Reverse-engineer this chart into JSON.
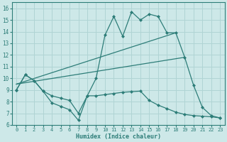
{
  "xlabel": "Humidex (Indice chaleur)",
  "xlim": [
    -0.5,
    23.5
  ],
  "ylim": [
    6,
    16.5
  ],
  "xticks": [
    0,
    1,
    2,
    3,
    4,
    5,
    6,
    7,
    8,
    9,
    10,
    11,
    12,
    13,
    14,
    15,
    16,
    17,
    18,
    19,
    20,
    21,
    22,
    23
  ],
  "yticks": [
    6,
    7,
    8,
    9,
    10,
    11,
    12,
    13,
    14,
    15,
    16
  ],
  "bg_color": "#cde8e8",
  "line_color": "#2d7d78",
  "grid_color": "#b0d4d4",
  "line1_x": [
    0,
    1,
    2,
    3,
    4,
    5,
    6,
    7,
    8,
    9,
    10,
    11,
    12,
    13,
    14,
    15,
    16,
    17,
    18,
    19,
    20,
    21,
    22,
    23
  ],
  "line1_y": [
    9.0,
    10.3,
    9.8,
    8.9,
    7.9,
    7.6,
    7.3,
    6.4,
    8.5,
    10.0,
    13.7,
    15.3,
    13.6,
    15.7,
    15.0,
    15.5,
    15.3,
    13.9,
    13.9,
    11.8,
    9.4,
    7.5,
    6.8,
    6.6
  ],
  "line2_x": [
    0,
    1,
    2,
    3,
    4,
    5,
    6,
    7,
    8,
    9,
    10,
    11,
    12,
    13,
    14,
    15,
    16,
    17,
    18,
    19,
    20,
    21,
    22,
    23
  ],
  "line2_y": [
    9.0,
    10.3,
    9.8,
    8.9,
    8.5,
    8.3,
    8.1,
    7.0,
    8.5,
    8.5,
    8.6,
    8.7,
    8.8,
    8.85,
    8.9,
    8.1,
    7.7,
    7.4,
    7.1,
    6.9,
    6.8,
    6.75,
    6.7,
    6.6
  ],
  "line3_x": [
    0,
    19
  ],
  "line3_y": [
    9.5,
    11.8
  ],
  "line4_x": [
    0,
    18
  ],
  "line4_y": [
    9.5,
    13.9
  ]
}
